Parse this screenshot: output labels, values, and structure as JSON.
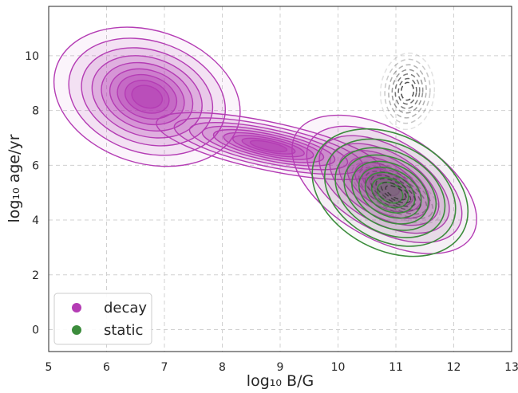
{
  "chart_data": {
    "type": "contour",
    "title": "",
    "xlabel": "log₁₀ B/G",
    "ylabel": "log₁₀ age/yr",
    "xlim": [
      5,
      13
    ],
    "ylim": [
      -0.8,
      11.8
    ],
    "xticks": [
      5,
      6,
      7,
      8,
      9,
      10,
      11,
      12,
      13
    ],
    "yticks": [
      0,
      2,
      4,
      6,
      8,
      10
    ],
    "grid": true,
    "grid_style": "dashed",
    "legend_position": "lower-left",
    "legend": [
      {
        "label": "decay",
        "color": "#b43cb4"
      },
      {
        "label": "static",
        "color": "#3c8c3c"
      }
    ],
    "series": [
      {
        "name": "decay",
        "kind": "filled density contours",
        "color": "#b43cb4",
        "components": [
          {
            "x": 6.7,
            "y": 8.5,
            "sx": 0.75,
            "sy": 1.1
          },
          {
            "x": 8.8,
            "y": 6.7,
            "sx": 0.9,
            "sy": 0.4
          },
          {
            "x": 10.8,
            "y": 5.3,
            "sx": 0.8,
            "sy": 0.9
          }
        ]
      },
      {
        "name": "static",
        "kind": "unfilled density contours",
        "color": "#3c8c3c",
        "components": [
          {
            "x": 10.9,
            "y": 5.0,
            "sx": 0.65,
            "sy": 0.95
          }
        ]
      },
      {
        "name": "",
        "kind": "dashed density contours",
        "color": "#333333",
        "components": [
          {
            "x": 11.2,
            "y": 8.7,
            "sx": 0.3,
            "sy": 0.9
          },
          {
            "x": 11.0,
            "y": 5.0,
            "sx": 0.55,
            "sy": 0.5
          }
        ]
      }
    ]
  },
  "colors": {
    "decay": "#b43cb4",
    "decay_dark": "#9b1f9b",
    "static": "#3c8c3c",
    "dashed": "#333333",
    "grid": "#d0d0d0",
    "axis": "#262626"
  }
}
